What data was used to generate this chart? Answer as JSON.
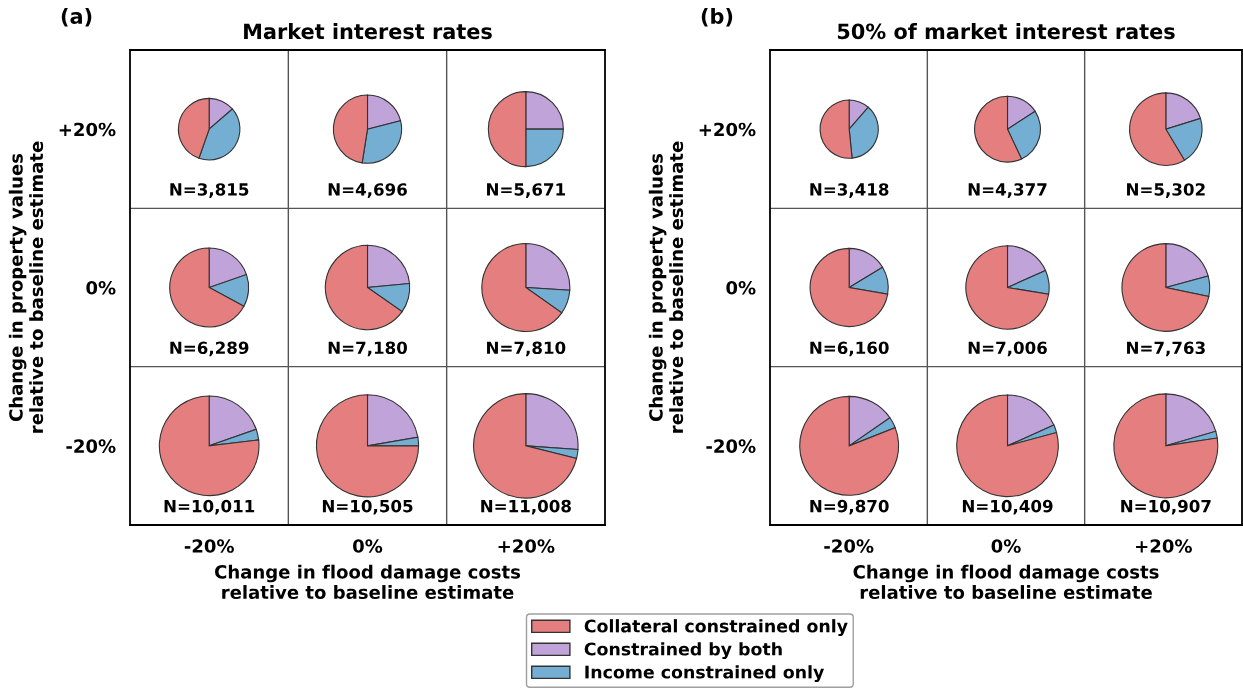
{
  "chart_data": [
    {
      "type": "other",
      "subtitle": "(a)",
      "title": "Market interest rates",
      "categories": [
        "-20%",
        "0%",
        "+20%"
      ],
      "y_categories": [
        "+20%",
        "0%",
        "-20%"
      ],
      "xlabel": "Change in flood damage costs\nrelative to baseline estimate",
      "ylabel": "Change in property values\nrelative to baseline estimate"
    },
    {
      "type": "pie",
      "categories": [
        "Collateral constrained only",
        "Constrained by both",
        "Income constrained only"
      ],
      "values": [
        44.6,
        13.6,
        41.8
      ],
      "colors": [
        "#e57f7f",
        "#c0a3d8",
        "#74aed3"
      ],
      "annotations": [
        "N=3,815"
      ],
      "legend": "bottom"
    },
    {
      "type": "pie",
      "categories": [
        null,
        null,
        null
      ],
      "values": [
        47.5,
        21,
        31.5
      ],
      "colors": [
        "#e57f7f",
        "#c0a3d8",
        "#74aed3"
      ],
      "annotations": [
        "N=4,696"
      ]
    },
    {
      "type": "pie",
      "categories": [
        null,
        null,
        null
      ],
      "values": [
        50,
        25,
        25
      ],
      "colors": [
        "#e57f7f",
        "#c0a3d8",
        "#74aed3"
      ],
      "annotations": [
        "N=5,671"
      ]
    },
    {
      "type": "pie",
      "categories": [
        null,
        null,
        null
      ],
      "values": [
        67.1,
        19.7,
        13.2
      ],
      "colors": [
        "#e57f7f",
        "#c0a3d8",
        "#74aed3"
      ],
      "annotations": [
        "N=6,289"
      ]
    },
    {
      "type": "pie",
      "categories": [
        null,
        null,
        null
      ],
      "values": [
        65.3,
        23.5,
        11.2
      ],
      "colors": [
        "#e57f7f",
        "#c0a3d8",
        "#74aed3"
      ],
      "annotations": [
        "N=7,180"
      ]
    },
    {
      "type": "pie",
      "categories": [
        null,
        null,
        null
      ],
      "values": [
        65.2,
        26,
        8.8
      ],
      "colors": [
        "#e57f7f",
        "#c0a3d8",
        "#74aed3"
      ],
      "annotations": [
        "N=7,810"
      ]
    },
    {
      "type": "pie",
      "categories": [
        null,
        null,
        null
      ],
      "values": [
        76.9,
        19.6,
        3.5
      ],
      "colors": [
        "#e57f7f",
        "#c0a3d8",
        "#74aed3"
      ],
      "annotations": [
        "N=10,011"
      ]
    },
    {
      "type": "pie",
      "categories": [
        null,
        null,
        null
      ],
      "values": [
        75,
        22.3,
        2.7
      ],
      "colors": [
        "#e57f7f",
        "#c0a3d8",
        "#74aed3"
      ],
      "annotations": [
        "N=10,505"
      ]
    },
    {
      "type": "pie",
      "categories": [
        null,
        null,
        null
      ],
      "values": [
        71.1,
        26.1,
        2.8
      ],
      "colors": [
        "#e57f7f",
        "#c0a3d8",
        "#74aed3"
      ],
      "annotations": [
        "N=11,008"
      ]
    },
    {
      "type": "other",
      "subtitle": "(b)",
      "title": "50% of market interest rates",
      "categories": [
        "-20%",
        "0%",
        "+20%"
      ],
      "y_categories": [
        "+20%",
        "0%",
        "-20%"
      ],
      "xlabel": "Change in flood damage costs\nrelative to baseline estimate",
      "ylabel": "Change in property values\nrelative to baseline estimate"
    },
    {
      "type": "pie",
      "categories": [
        null,
        null,
        null
      ],
      "values": [
        51.6,
        11.4,
        37
      ],
      "colors": [
        "#e57f7f",
        "#c0a3d8",
        "#74aed3"
      ],
      "annotations": [
        "N=3,418"
      ]
    },
    {
      "type": "pie",
      "categories": [
        null,
        null,
        null
      ],
      "values": [
        57,
        15.9,
        27.1
      ],
      "colors": [
        "#e57f7f",
        "#c0a3d8",
        "#74aed3"
      ],
      "annotations": [
        "N=4,377"
      ]
    },
    {
      "type": "pie",
      "categories": [
        null,
        null,
        null
      ],
      "values": [
        58.6,
        20.2,
        21.2
      ],
      "colors": [
        "#e57f7f",
        "#c0a3d8",
        "#74aed3"
      ],
      "annotations": [
        "N=5,302"
      ]
    },
    {
      "type": "pie",
      "categories": [
        null,
        null,
        null
      ],
      "values": [
        72.3,
        16.3,
        11.4
      ],
      "colors": [
        "#e57f7f",
        "#c0a3d8",
        "#74aed3"
      ],
      "annotations": [
        "N=6,160"
      ]
    },
    {
      "type": "pie",
      "categories": [
        null,
        null,
        null
      ],
      "values": [
        72.4,
        18.3,
        9.3
      ],
      "colors": [
        "#e57f7f",
        "#c0a3d8",
        "#74aed3"
      ],
      "annotations": [
        "N=7,006"
      ]
    },
    {
      "type": "pie",
      "categories": [
        null,
        null,
        null
      ],
      "values": [
        71.7,
        20.8,
        7.5
      ],
      "colors": [
        "#e57f7f",
        "#c0a3d8",
        "#74aed3"
      ],
      "annotations": [
        "N=7,763"
      ]
    },
    {
      "type": "pie",
      "categories": [
        null,
        null,
        null
      ],
      "values": [
        81,
        15.4,
        3.6
      ],
      "colors": [
        "#e57f7f",
        "#c0a3d8",
        "#74aed3"
      ],
      "annotations": [
        "N=9,870"
      ]
    },
    {
      "type": "pie",
      "categories": [
        null,
        null,
        null
      ],
      "values": [
        79.2,
        18.3,
        2.5
      ],
      "colors": [
        "#e57f7f",
        "#c0a3d8",
        "#74aed3"
      ],
      "annotations": [
        "N=10,409"
      ]
    },
    {
      "type": "pie",
      "categories": [
        null,
        null,
        null
      ],
      "values": [
        77.4,
        20.5,
        2.1
      ],
      "colors": [
        "#e57f7f",
        "#c0a3d8",
        "#74aed3"
      ],
      "annotations": [
        "N=10,907"
      ]
    }
  ]
}
